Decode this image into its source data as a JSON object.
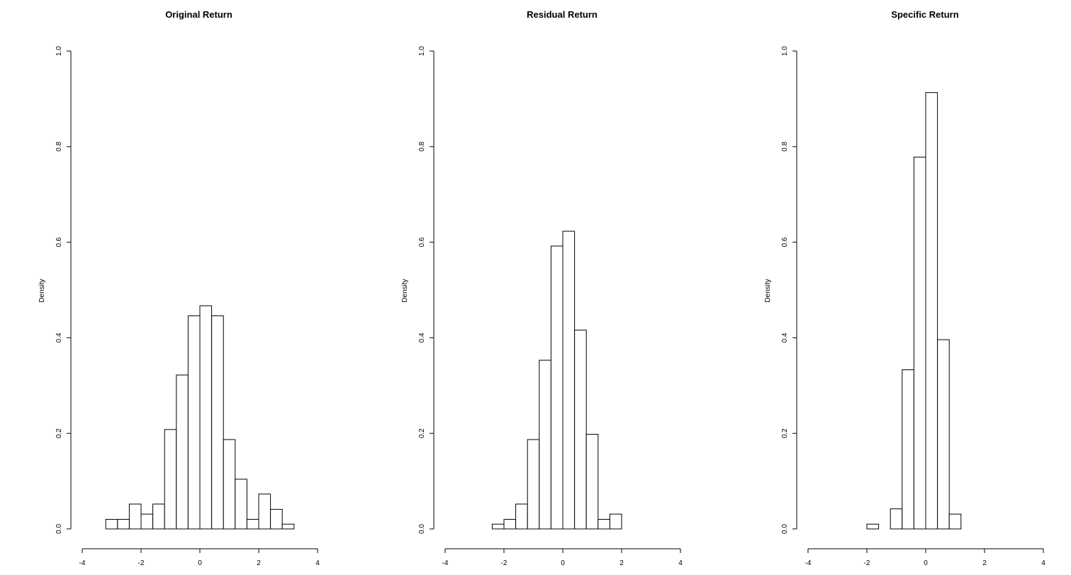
{
  "chart_data": [
    {
      "type": "bar",
      "title": "Original Return",
      "xlabel": "",
      "ylabel": "Density",
      "xlim": [
        -4,
        4
      ],
      "ylim": [
        0,
        1.0
      ],
      "xticks": [
        "-4",
        "-2",
        "0",
        "2",
        "4"
      ],
      "yticks": [
        "0.0",
        "0.2",
        "0.4",
        "0.6",
        "0.8",
        "1.0"
      ],
      "bin_width": 0.4,
      "bins": [
        {
          "x0": -4.0,
          "density": 0.0
        },
        {
          "x0": -3.6,
          "density": 0.0
        },
        {
          "x0": -3.2,
          "density": 0.02
        },
        {
          "x0": -2.8,
          "density": 0.02
        },
        {
          "x0": -2.4,
          "density": 0.052
        },
        {
          "x0": -2.0,
          "density": 0.031
        },
        {
          "x0": -1.6,
          "density": 0.052
        },
        {
          "x0": -1.2,
          "density": 0.208
        },
        {
          "x0": -0.8,
          "density": 0.322
        },
        {
          "x0": -0.4,
          "density": 0.446
        },
        {
          "x0": 0.0,
          "density": 0.467
        },
        {
          "x0": 0.4,
          "density": 0.446
        },
        {
          "x0": 0.8,
          "density": 0.187
        },
        {
          "x0": 1.2,
          "density": 0.104
        },
        {
          "x0": 1.6,
          "density": 0.02
        },
        {
          "x0": 2.0,
          "density": 0.073
        },
        {
          "x0": 2.4,
          "density": 0.041
        },
        {
          "x0": 2.8,
          "density": 0.01
        },
        {
          "x0": 3.2,
          "density": 0.0
        },
        {
          "x0": 3.6,
          "density": 0.0
        }
      ]
    },
    {
      "type": "bar",
      "title": "Residual Return",
      "xlabel": "",
      "ylabel": "Density",
      "xlim": [
        -4,
        4
      ],
      "ylim": [
        0,
        1.0
      ],
      "xticks": [
        "-4",
        "-2",
        "0",
        "2",
        "4"
      ],
      "yticks": [
        "0.0",
        "0.2",
        "0.4",
        "0.6",
        "0.8",
        "1.0"
      ],
      "bin_width": 0.4,
      "bins": [
        {
          "x0": -4.0,
          "density": 0.0
        },
        {
          "x0": -3.6,
          "density": 0.0
        },
        {
          "x0": -3.2,
          "density": 0.0
        },
        {
          "x0": -2.8,
          "density": 0.0
        },
        {
          "x0": -2.4,
          "density": 0.01
        },
        {
          "x0": -2.0,
          "density": 0.02
        },
        {
          "x0": -1.6,
          "density": 0.052
        },
        {
          "x0": -1.2,
          "density": 0.187
        },
        {
          "x0": -0.8,
          "density": 0.353
        },
        {
          "x0": -0.4,
          "density": 0.592
        },
        {
          "x0": 0.0,
          "density": 0.623
        },
        {
          "x0": 0.4,
          "density": 0.416
        },
        {
          "x0": 0.8,
          "density": 0.198
        },
        {
          "x0": 1.2,
          "density": 0.02
        },
        {
          "x0": 1.6,
          "density": 0.031
        },
        {
          "x0": 2.0,
          "density": 0.0
        },
        {
          "x0": 2.4,
          "density": 0.0
        },
        {
          "x0": 2.8,
          "density": 0.0
        },
        {
          "x0": 3.2,
          "density": 0.0
        },
        {
          "x0": 3.6,
          "density": 0.0
        }
      ]
    },
    {
      "type": "bar",
      "title": "Specific Return",
      "xlabel": "",
      "ylabel": "Density",
      "xlim": [
        -4,
        4
      ],
      "ylim": [
        0,
        1.0
      ],
      "xticks": [
        "-4",
        "-2",
        "0",
        "2",
        "4"
      ],
      "yticks": [
        "0.0",
        "0.2",
        "0.4",
        "0.6",
        "0.8",
        "1.0"
      ],
      "bin_width": 0.4,
      "bins": [
        {
          "x0": -4.0,
          "density": 0.0
        },
        {
          "x0": -3.6,
          "density": 0.0
        },
        {
          "x0": -3.2,
          "density": 0.0
        },
        {
          "x0": -2.8,
          "density": 0.0
        },
        {
          "x0": -2.4,
          "density": 0.0
        },
        {
          "x0": -2.0,
          "density": 0.01
        },
        {
          "x0": -1.6,
          "density": 0.0
        },
        {
          "x0": -1.2,
          "density": 0.042
        },
        {
          "x0": -0.8,
          "density": 0.333
        },
        {
          "x0": -0.4,
          "density": 0.778
        },
        {
          "x0": 0.0,
          "density": 0.913
        },
        {
          "x0": 0.4,
          "density": 0.396
        },
        {
          "x0": 0.8,
          "density": 0.031
        },
        {
          "x0": 1.2,
          "density": 0.0
        },
        {
          "x0": 1.6,
          "density": 0.0
        },
        {
          "x0": 2.0,
          "density": 0.0
        },
        {
          "x0": 2.4,
          "density": 0.0
        },
        {
          "x0": 2.8,
          "density": 0.0
        },
        {
          "x0": 3.2,
          "density": 0.0
        },
        {
          "x0": 3.6,
          "density": 0.0
        }
      ]
    }
  ],
  "style": {
    "bar_fill": "#ffffff",
    "bar_stroke": "#000000",
    "axis_color": "#000000",
    "background": "#ffffff"
  }
}
